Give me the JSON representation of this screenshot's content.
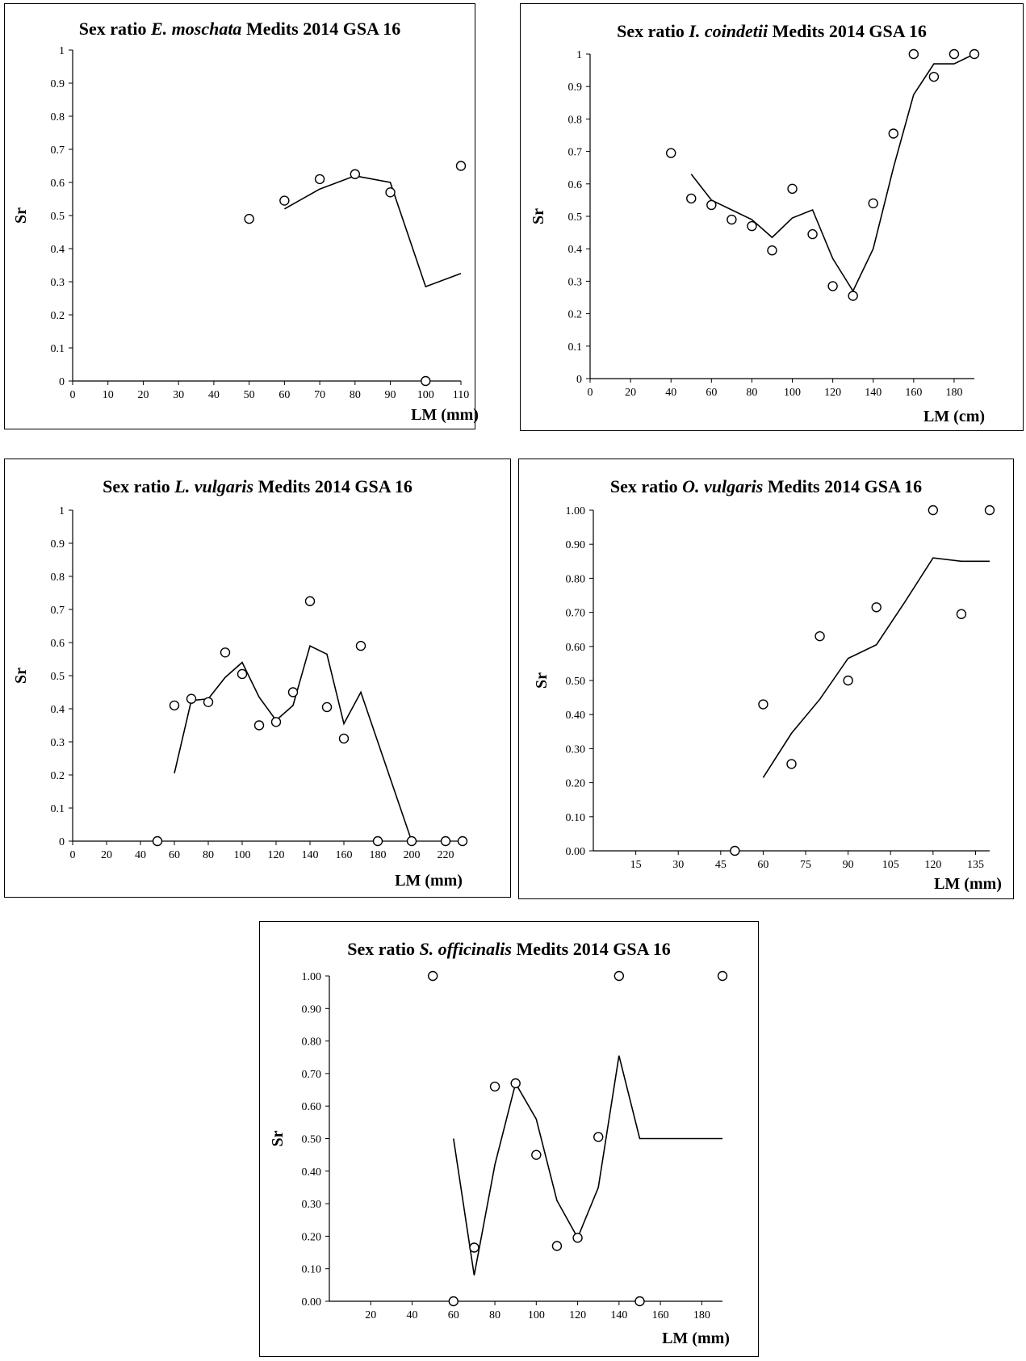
{
  "chart_data": [
    {
      "id": "c1",
      "type": "scatter",
      "title": {
        "pre": "Sex ratio ",
        "species": "E. moschata",
        "post": " Medits 2014 GSA 16"
      },
      "xlabel": "LM (mm)",
      "ylabel": "Sr",
      "xlim": [
        0,
        110
      ],
      "ylim": [
        0,
        1
      ],
      "xticks": [
        0,
        10,
        20,
        30,
        40,
        50,
        60,
        70,
        80,
        90,
        100,
        110
      ],
      "yticks": [
        0,
        0.1,
        0.2,
        0.3,
        0.4,
        0.5,
        0.6,
        0.7,
        0.8,
        0.9,
        1
      ],
      "yfmt": "g",
      "grid": false,
      "points": [
        [
          50,
          0.49
        ],
        [
          60,
          0.545
        ],
        [
          70,
          0.61
        ],
        [
          80,
          0.625
        ],
        [
          90,
          0.57
        ],
        [
          100,
          0
        ],
        [
          110,
          0.65
        ]
      ],
      "line": [
        [
          60,
          0.52
        ],
        [
          70,
          0.58
        ],
        [
          80,
          0.62
        ],
        [
          90,
          0.6
        ],
        [
          100,
          0.285
        ],
        [
          110,
          0.325
        ]
      ]
    },
    {
      "id": "c2",
      "type": "scatter",
      "title": {
        "pre": "Sex ratio ",
        "species": "I. coindetii",
        "post": " Medits 2014 GSA 16"
      },
      "xlabel": "LM (cm)",
      "ylabel": "Sr",
      "xlim": [
        0,
        190
      ],
      "ylim": [
        0,
        1
      ],
      "xticks": [
        0,
        20,
        40,
        60,
        80,
        100,
        120,
        140,
        160,
        180
      ],
      "yticks": [
        0,
        0.1,
        0.2,
        0.3,
        0.4,
        0.5,
        0.6,
        0.7,
        0.8,
        0.9,
        1
      ],
      "yfmt": "g",
      "grid": false,
      "points": [
        [
          40,
          0.695
        ],
        [
          50,
          0.555
        ],
        [
          60,
          0.535
        ],
        [
          70,
          0.49
        ],
        [
          80,
          0.47
        ],
        [
          90,
          0.395
        ],
        [
          100,
          0.585
        ],
        [
          110,
          0.445
        ],
        [
          120,
          0.285
        ],
        [
          130,
          0.255
        ],
        [
          140,
          0.54
        ],
        [
          150,
          0.755
        ],
        [
          160,
          1
        ],
        [
          170,
          0.93
        ],
        [
          180,
          1
        ],
        [
          190,
          1
        ]
      ],
      "line": [
        [
          50,
          0.63
        ],
        [
          60,
          0.55
        ],
        [
          70,
          0.52
        ],
        [
          80,
          0.49
        ],
        [
          90,
          0.435
        ],
        [
          100,
          0.495
        ],
        [
          110,
          0.52
        ],
        [
          120,
          0.37
        ],
        [
          130,
          0.27
        ],
        [
          140,
          0.4
        ],
        [
          150,
          0.65
        ],
        [
          160,
          0.875
        ],
        [
          170,
          0.97
        ],
        [
          180,
          0.97
        ],
        [
          190,
          1
        ]
      ]
    },
    {
      "id": "c3",
      "type": "scatter",
      "title": {
        "pre": "Sex ratio ",
        "species": "L. vulgaris",
        "post": " Medits 2014 GSA 16"
      },
      "xlabel": "LM (mm)",
      "ylabel": "Sr",
      "xlim": [
        0,
        230
      ],
      "ylim": [
        0,
        1
      ],
      "xticks": [
        0,
        20,
        40,
        60,
        80,
        100,
        120,
        140,
        160,
        180,
        200,
        220
      ],
      "yticks": [
        0,
        0.1,
        0.2,
        0.3,
        0.4,
        0.5,
        0.6,
        0.7,
        0.8,
        0.9,
        1
      ],
      "yfmt": "g",
      "grid": false,
      "points": [
        [
          50,
          0
        ],
        [
          60,
          0.41
        ],
        [
          70,
          0.43
        ],
        [
          80,
          0.42
        ],
        [
          90,
          0.57
        ],
        [
          100,
          0.505
        ],
        [
          110,
          0.35
        ],
        [
          120,
          0.36
        ],
        [
          130,
          0.45
        ],
        [
          140,
          0.725
        ],
        [
          150,
          0.405
        ],
        [
          160,
          0.31
        ],
        [
          170,
          0.59
        ],
        [
          180,
          0
        ],
        [
          200,
          0
        ],
        [
          220,
          0
        ],
        [
          230,
          0
        ]
      ],
      "line": [
        [
          60,
          0.205
        ],
        [
          70,
          0.425
        ],
        [
          80,
          0.43
        ],
        [
          90,
          0.495
        ],
        [
          100,
          0.54
        ],
        [
          110,
          0.435
        ],
        [
          120,
          0.365
        ],
        [
          130,
          0.41
        ],
        [
          140,
          0.59
        ],
        [
          150,
          0.565
        ],
        [
          160,
          0.355
        ],
        [
          170,
          0.45
        ],
        [
          200,
          0
        ]
      ]
    },
    {
      "id": "c4",
      "type": "scatter",
      "title": {
        "pre": "Sex ratio ",
        "species": "O. vulgaris",
        "post": " Medits 2014 GSA 16"
      },
      "xlabel": "LM (mm)",
      "ylabel": "Sr",
      "xlim": [
        0,
        140
      ],
      "ylim": [
        0,
        1
      ],
      "xticks": [
        15,
        30,
        45,
        60,
        75,
        90,
        105,
        120,
        135
      ],
      "yticks": [
        0,
        0.1,
        0.2,
        0.3,
        0.4,
        0.5,
        0.6,
        0.7,
        0.8,
        0.9,
        1
      ],
      "yfmt": "2",
      "grid": false,
      "points": [
        [
          50,
          0
        ],
        [
          60,
          0.43
        ],
        [
          70,
          0.255
        ],
        [
          80,
          0.63
        ],
        [
          90,
          0.5
        ],
        [
          100,
          0.715
        ],
        [
          120,
          1
        ],
        [
          130,
          0.695
        ],
        [
          140,
          1
        ]
      ],
      "line": [
        [
          60,
          0.215
        ],
        [
          70,
          0.345
        ],
        [
          80,
          0.445
        ],
        [
          90,
          0.565
        ],
        [
          100,
          0.605
        ],
        [
          110,
          0.73
        ],
        [
          120,
          0.86
        ],
        [
          130,
          0.85
        ],
        [
          140,
          0.85
        ]
      ]
    },
    {
      "id": "c5",
      "type": "scatter",
      "title": {
        "pre": "Sex ratio ",
        "species": "S. officinalis",
        "post": " Medits 2014 GSA 16"
      },
      "xlabel": "LM (mm)",
      "ylabel": "Sr",
      "xlim": [
        0,
        190
      ],
      "ylim": [
        0,
        1
      ],
      "xticks": [
        20,
        40,
        60,
        80,
        100,
        120,
        140,
        160,
        180
      ],
      "yticks": [
        0,
        0.1,
        0.2,
        0.3,
        0.4,
        0.5,
        0.6,
        0.7,
        0.8,
        0.9,
        1
      ],
      "yfmt": "2",
      "grid": false,
      "points": [
        [
          50,
          1
        ],
        [
          60,
          0
        ],
        [
          70,
          0.165
        ],
        [
          80,
          0.66
        ],
        [
          90,
          0.67
        ],
        [
          100,
          0.45
        ],
        [
          110,
          0.17
        ],
        [
          120,
          0.195
        ],
        [
          130,
          0.505
        ],
        [
          140,
          1
        ],
        [
          150,
          0
        ],
        [
          190,
          1
        ]
      ],
      "line": [
        [
          60,
          0.5
        ],
        [
          70,
          0.08
        ],
        [
          80,
          0.42
        ],
        [
          90,
          0.67
        ],
        [
          100,
          0.56
        ],
        [
          110,
          0.31
        ],
        [
          120,
          0.195
        ],
        [
          130,
          0.35
        ],
        [
          140,
          0.755
        ],
        [
          150,
          0.5
        ],
        [
          190,
          0.5
        ]
      ]
    }
  ]
}
